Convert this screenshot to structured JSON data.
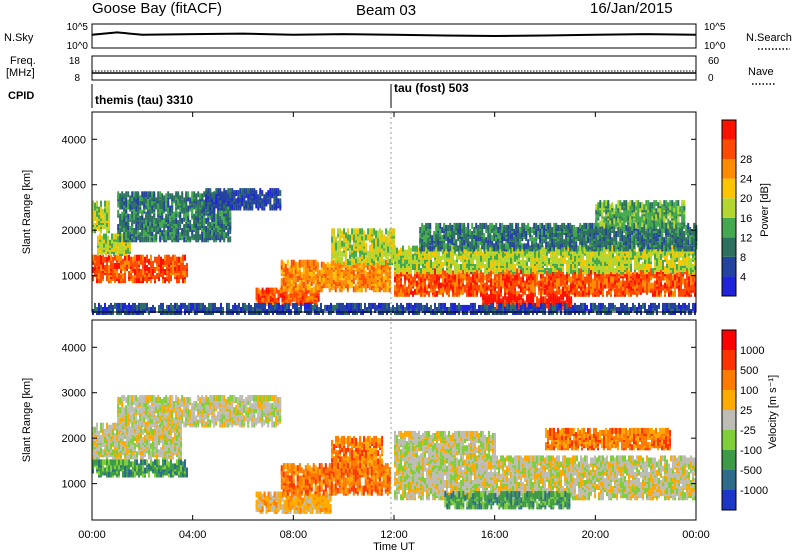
{
  "header": {
    "station": "Goose Bay (fitACF)",
    "beam": "Beam 03",
    "date": "16/Jan/2015"
  },
  "colors": {
    "power_scale": [
      "#1f23d9",
      "#24439e",
      "#2e7060",
      "#44a84e",
      "#b3d631",
      "#ffc400",
      "#ff8c00",
      "#ff4a00",
      "#ff1100"
    ],
    "velocity_scale": [
      "#1c36c8",
      "#2e6c8c",
      "#3d9a46",
      "#80cf3a",
      "#bdbdb5",
      "#ffaa00",
      "#ff7a00",
      "#ff3300",
      "#ff0000"
    ],
    "ground_scatter": "#bdbdb5",
    "text": "#000000"
  },
  "chart_data": [
    {
      "type": "line",
      "name": "strip-nsky-nsearch",
      "left_label": "N.Sky",
      "right_label": "N.Search",
      "left_ticks": [
        "10^5",
        "10^0"
      ],
      "right_ticks": [
        "10^5",
        "10^0"
      ],
      "x": [
        "00:00",
        "24:00"
      ],
      "series": [
        {
          "name": "N.Sky",
          "x": [
            0,
            1,
            2,
            4,
            6,
            8,
            10,
            12,
            14,
            16,
            18,
            20,
            22,
            24
          ],
          "y_fraction": [
            0.45,
            0.35,
            0.45,
            0.42,
            0.4,
            0.45,
            0.42,
            0.45,
            0.48,
            0.5,
            0.48,
            0.45,
            0.42,
            0.45
          ]
        }
      ]
    },
    {
      "type": "line",
      "name": "strip-freq-nave",
      "left_label_lines": [
        "Freq.",
        "[MHz]"
      ],
      "right_label": "Nave",
      "left_ticks": [
        "18",
        "8"
      ],
      "right_ticks": [
        "60",
        "0"
      ],
      "x": [
        "00:00",
        "24:00"
      ]
    },
    {
      "type": "table",
      "name": "strip-cpid",
      "label": "CPID",
      "entries": [
        {
          "start": "00:00",
          "text": "themis (tau) 3310"
        },
        {
          "start": "12:00",
          "text": "tau (fost) 503"
        }
      ]
    },
    {
      "type": "heatmap",
      "name": "power-rti",
      "ylabel": "Slant Range [km]",
      "yticks": [
        1000,
        2000,
        3000,
        4000
      ],
      "ylim": [
        200,
        4600
      ],
      "xlim": [
        "00:00",
        "24:00"
      ],
      "colorbar_label": "Power [dB]",
      "colorbar_ticks": [
        4,
        8,
        12,
        16,
        20,
        24,
        28
      ],
      "bands": [
        {
          "t0": 0.0,
          "t1": 3.8,
          "r0": 900,
          "r1": 1400,
          "level": 7
        },
        {
          "t0": 0.2,
          "t1": 1.5,
          "r0": 1500,
          "r1": 1900,
          "level": 4
        },
        {
          "t0": 0.0,
          "t1": 0.7,
          "r0": 2000,
          "r1": 2600,
          "level": 4
        },
        {
          "t0": 1.0,
          "t1": 5.5,
          "r0": 1800,
          "r1": 2800,
          "level": 2
        },
        {
          "t0": 4.5,
          "t1": 7.5,
          "r0": 2500,
          "r1": 2900,
          "level": 1
        },
        {
          "t0": 6.5,
          "t1": 9.0,
          "r0": 400,
          "r1": 700,
          "level": 7
        },
        {
          "t0": 7.5,
          "t1": 11.8,
          "r0": 700,
          "r1": 1300,
          "level": 6
        },
        {
          "t0": 9.5,
          "t1": 12.0,
          "r0": 1300,
          "r1": 2000,
          "level": 4
        },
        {
          "t0": 12.0,
          "t1": 24.0,
          "r0": 600,
          "r1": 1100,
          "level": 7
        },
        {
          "t0": 15.5,
          "t1": 19.0,
          "r0": 300,
          "r1": 550,
          "level": 8
        },
        {
          "t0": 12.0,
          "t1": 24.0,
          "r0": 1100,
          "r1": 1600,
          "level": 4
        },
        {
          "t0": 13.0,
          "t1": 24.0,
          "r0": 1600,
          "r1": 2100,
          "level": 2
        },
        {
          "t0": 20.0,
          "t1": 23.5,
          "r0": 2100,
          "r1": 2600,
          "level": 3
        },
        {
          "t0": 0.0,
          "t1": 24.0,
          "r0": 200,
          "r1": 350,
          "level": 1
        }
      ]
    },
    {
      "type": "heatmap",
      "name": "velocity-rti",
      "ylabel": "Slant Range [km]",
      "yticks": [
        1000,
        2000,
        3000,
        4000
      ],
      "ylim": [
        200,
        4600
      ],
      "xlim": [
        "00:00",
        "24:00"
      ],
      "xticks": [
        "00:00",
        "04:00",
        "08:00",
        "12:00",
        "16:00",
        "20:00",
        "00:00"
      ],
      "xlabel": "Time UT",
      "colorbar_label": "Velocity [m s⁻¹]",
      "colorbar_ticks": [
        "1000",
        "500",
        "100",
        "25",
        "-25",
        "-100",
        "-500",
        "-1000"
      ],
      "bands": [
        {
          "t0": 0.0,
          "t1": 3.8,
          "r0": 1200,
          "r1": 1500,
          "level": 2
        },
        {
          "t0": 0.0,
          "t1": 3.5,
          "r0": 1600,
          "r1": 2300,
          "level": 4
        },
        {
          "t0": 1.0,
          "t1": 7.5,
          "r0": 2300,
          "r1": 2900,
          "level": 4
        },
        {
          "t0": 6.5,
          "t1": 9.5,
          "r0": 400,
          "r1": 800,
          "level": 5
        },
        {
          "t0": 7.5,
          "t1": 11.8,
          "r0": 800,
          "r1": 1400,
          "level": 6
        },
        {
          "t0": 9.5,
          "t1": 11.5,
          "r0": 1400,
          "r1": 2000,
          "level": 6
        },
        {
          "t0": 12.0,
          "t1": 24.0,
          "r0": 700,
          "r1": 1600,
          "level": 4
        },
        {
          "t0": 12.0,
          "t1": 16.0,
          "r0": 1600,
          "r1": 2100,
          "level": 4
        },
        {
          "t0": 18.0,
          "t1": 23.0,
          "r0": 1800,
          "r1": 2200,
          "level": 6
        },
        {
          "t0": 14.0,
          "t1": 19.0,
          "r0": 500,
          "r1": 800,
          "level": 2
        }
      ]
    }
  ]
}
